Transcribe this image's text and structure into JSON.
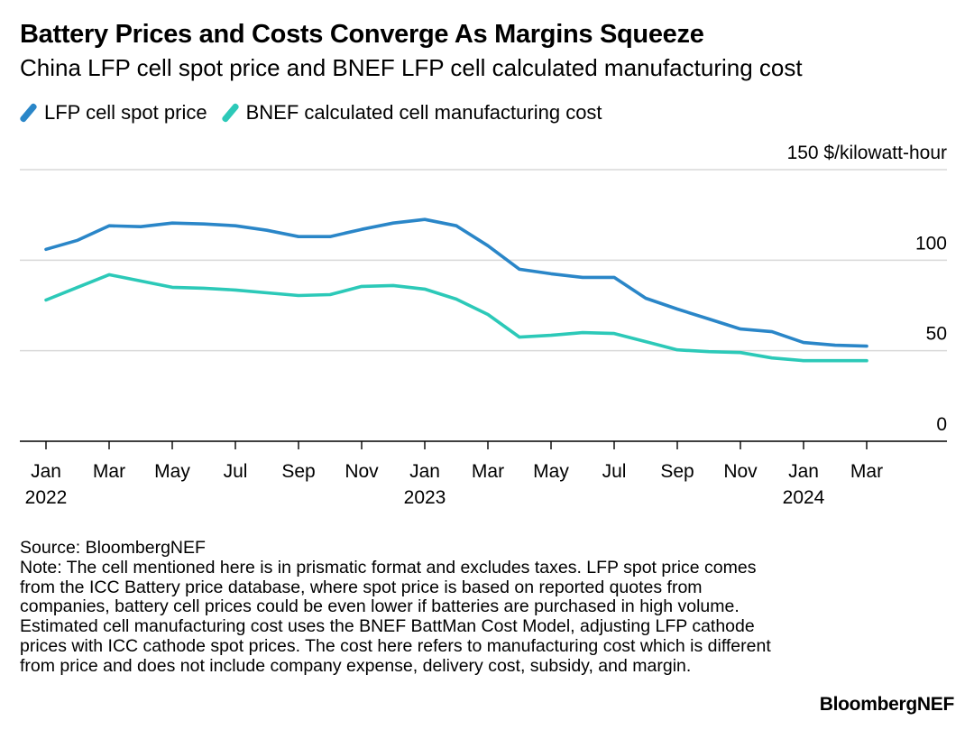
{
  "title": "Battery Prices and Costs Converge As Margins Squeeze",
  "subtitle": "China LFP cell spot price and BNEF LFP cell calculated manufacturing cost",
  "source": "Source: BloombergNEF",
  "note": "Note: The cell mentioned here is in prismatic format and excludes taxes. LFP spot price comes from the ICC Battery price database, where spot price is based on reported quotes from companies, battery cell prices could be even lower if batteries are purchased in high volume. Estimated cell manufacturing cost uses the BNEF BattMan Cost Model, adjusting LFP cathode prices with ICC cathode spot prices. The cost here refers to manufacturing cost which is different from price and does not include company expense, delivery cost, subsidy, and margin.",
  "brand": "BloombergNEF",
  "colors": {
    "spot": "#2a86c8",
    "cost": "#2cc9b8",
    "grid": "#d9d9d9",
    "axis": "#000000"
  },
  "chart_data": {
    "type": "line",
    "title": "Battery Prices and Costs Converge As Margins Squeeze",
    "ylabel": "$/kilowatt-hour",
    "ylim": [
      0,
      150
    ],
    "yticks": [
      {
        "value": 150,
        "label": "150 $/kilowatt-hour"
      },
      {
        "value": 100,
        "label": "100"
      },
      {
        "value": 50,
        "label": "50"
      },
      {
        "value": 0,
        "label": "0"
      }
    ],
    "xticks": [
      {
        "month": 0,
        "label": "Jan",
        "year": "2022"
      },
      {
        "month": 2,
        "label": "Mar",
        "year": ""
      },
      {
        "month": 4,
        "label": "May",
        "year": ""
      },
      {
        "month": 6,
        "label": "Jul",
        "year": ""
      },
      {
        "month": 8,
        "label": "Sep",
        "year": ""
      },
      {
        "month": 10,
        "label": "Nov",
        "year": ""
      },
      {
        "month": 12,
        "label": "Jan",
        "year": "2023"
      },
      {
        "month": 14,
        "label": "Mar",
        "year": ""
      },
      {
        "month": 16,
        "label": "May",
        "year": ""
      },
      {
        "month": 18,
        "label": "Jul",
        "year": ""
      },
      {
        "month": 20,
        "label": "Sep",
        "year": ""
      },
      {
        "month": 22,
        "label": "Nov",
        "year": ""
      },
      {
        "month": 24,
        "label": "Jan",
        "year": "2024"
      },
      {
        "month": 26,
        "label": "Mar",
        "year": ""
      }
    ],
    "x": [
      0,
      1,
      2,
      3,
      4,
      5,
      6,
      7,
      8,
      9,
      10,
      11,
      12,
      13,
      14,
      15,
      16,
      17,
      18,
      19,
      20,
      21,
      22,
      23,
      24,
      25,
      26
    ],
    "series": [
      {
        "name": "LFP cell spot price",
        "key": "spot",
        "values": [
          106,
          111,
          119,
          118.5,
          120.5,
          120,
          119,
          116.5,
          113,
          113,
          117,
          120.5,
          122.5,
          119,
          108,
          95,
          92.5,
          90.5,
          90.5,
          79,
          73,
          67.5,
          62,
          60.5,
          54.5,
          53,
          52.5
        ]
      },
      {
        "name": "BNEF calculated cell manufacturing cost",
        "key": "cost",
        "values": [
          78,
          85,
          92,
          88.5,
          85,
          84.5,
          83.5,
          82,
          80.5,
          81,
          85.5,
          86,
          84,
          78.5,
          70,
          57.5,
          58.5,
          60,
          59.5,
          55,
          50.5,
          49.5,
          49,
          46,
          44.5,
          44.5,
          44.5
        ]
      }
    ]
  }
}
